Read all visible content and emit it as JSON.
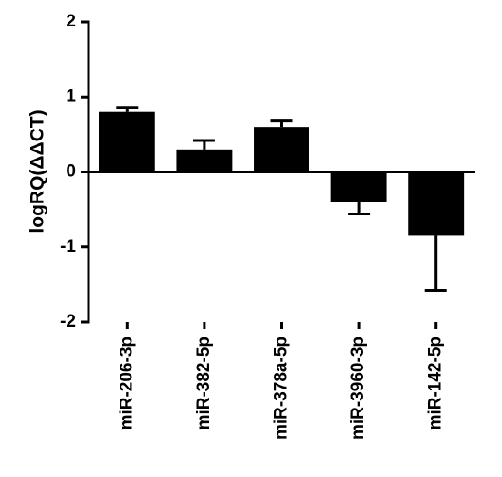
{
  "chart_data": {
    "type": "bar",
    "y_label": "logRQ(ΔΔCT)",
    "categories": [
      "miR-206-3p",
      "miR-382-5p",
      "miR-378a-5p",
      "miR-3960-3p",
      "miR-142-5p"
    ],
    "values": [
      0.8,
      0.3,
      0.6,
      -0.4,
      -0.85
    ],
    "errors": [
      0.06,
      0.12,
      0.08,
      0.16,
      0.73
    ],
    "color": "#000000",
    "ylim": [
      -2,
      2
    ],
    "yticks": [
      -2,
      -1,
      0,
      1,
      2
    ],
    "grid": false
  }
}
